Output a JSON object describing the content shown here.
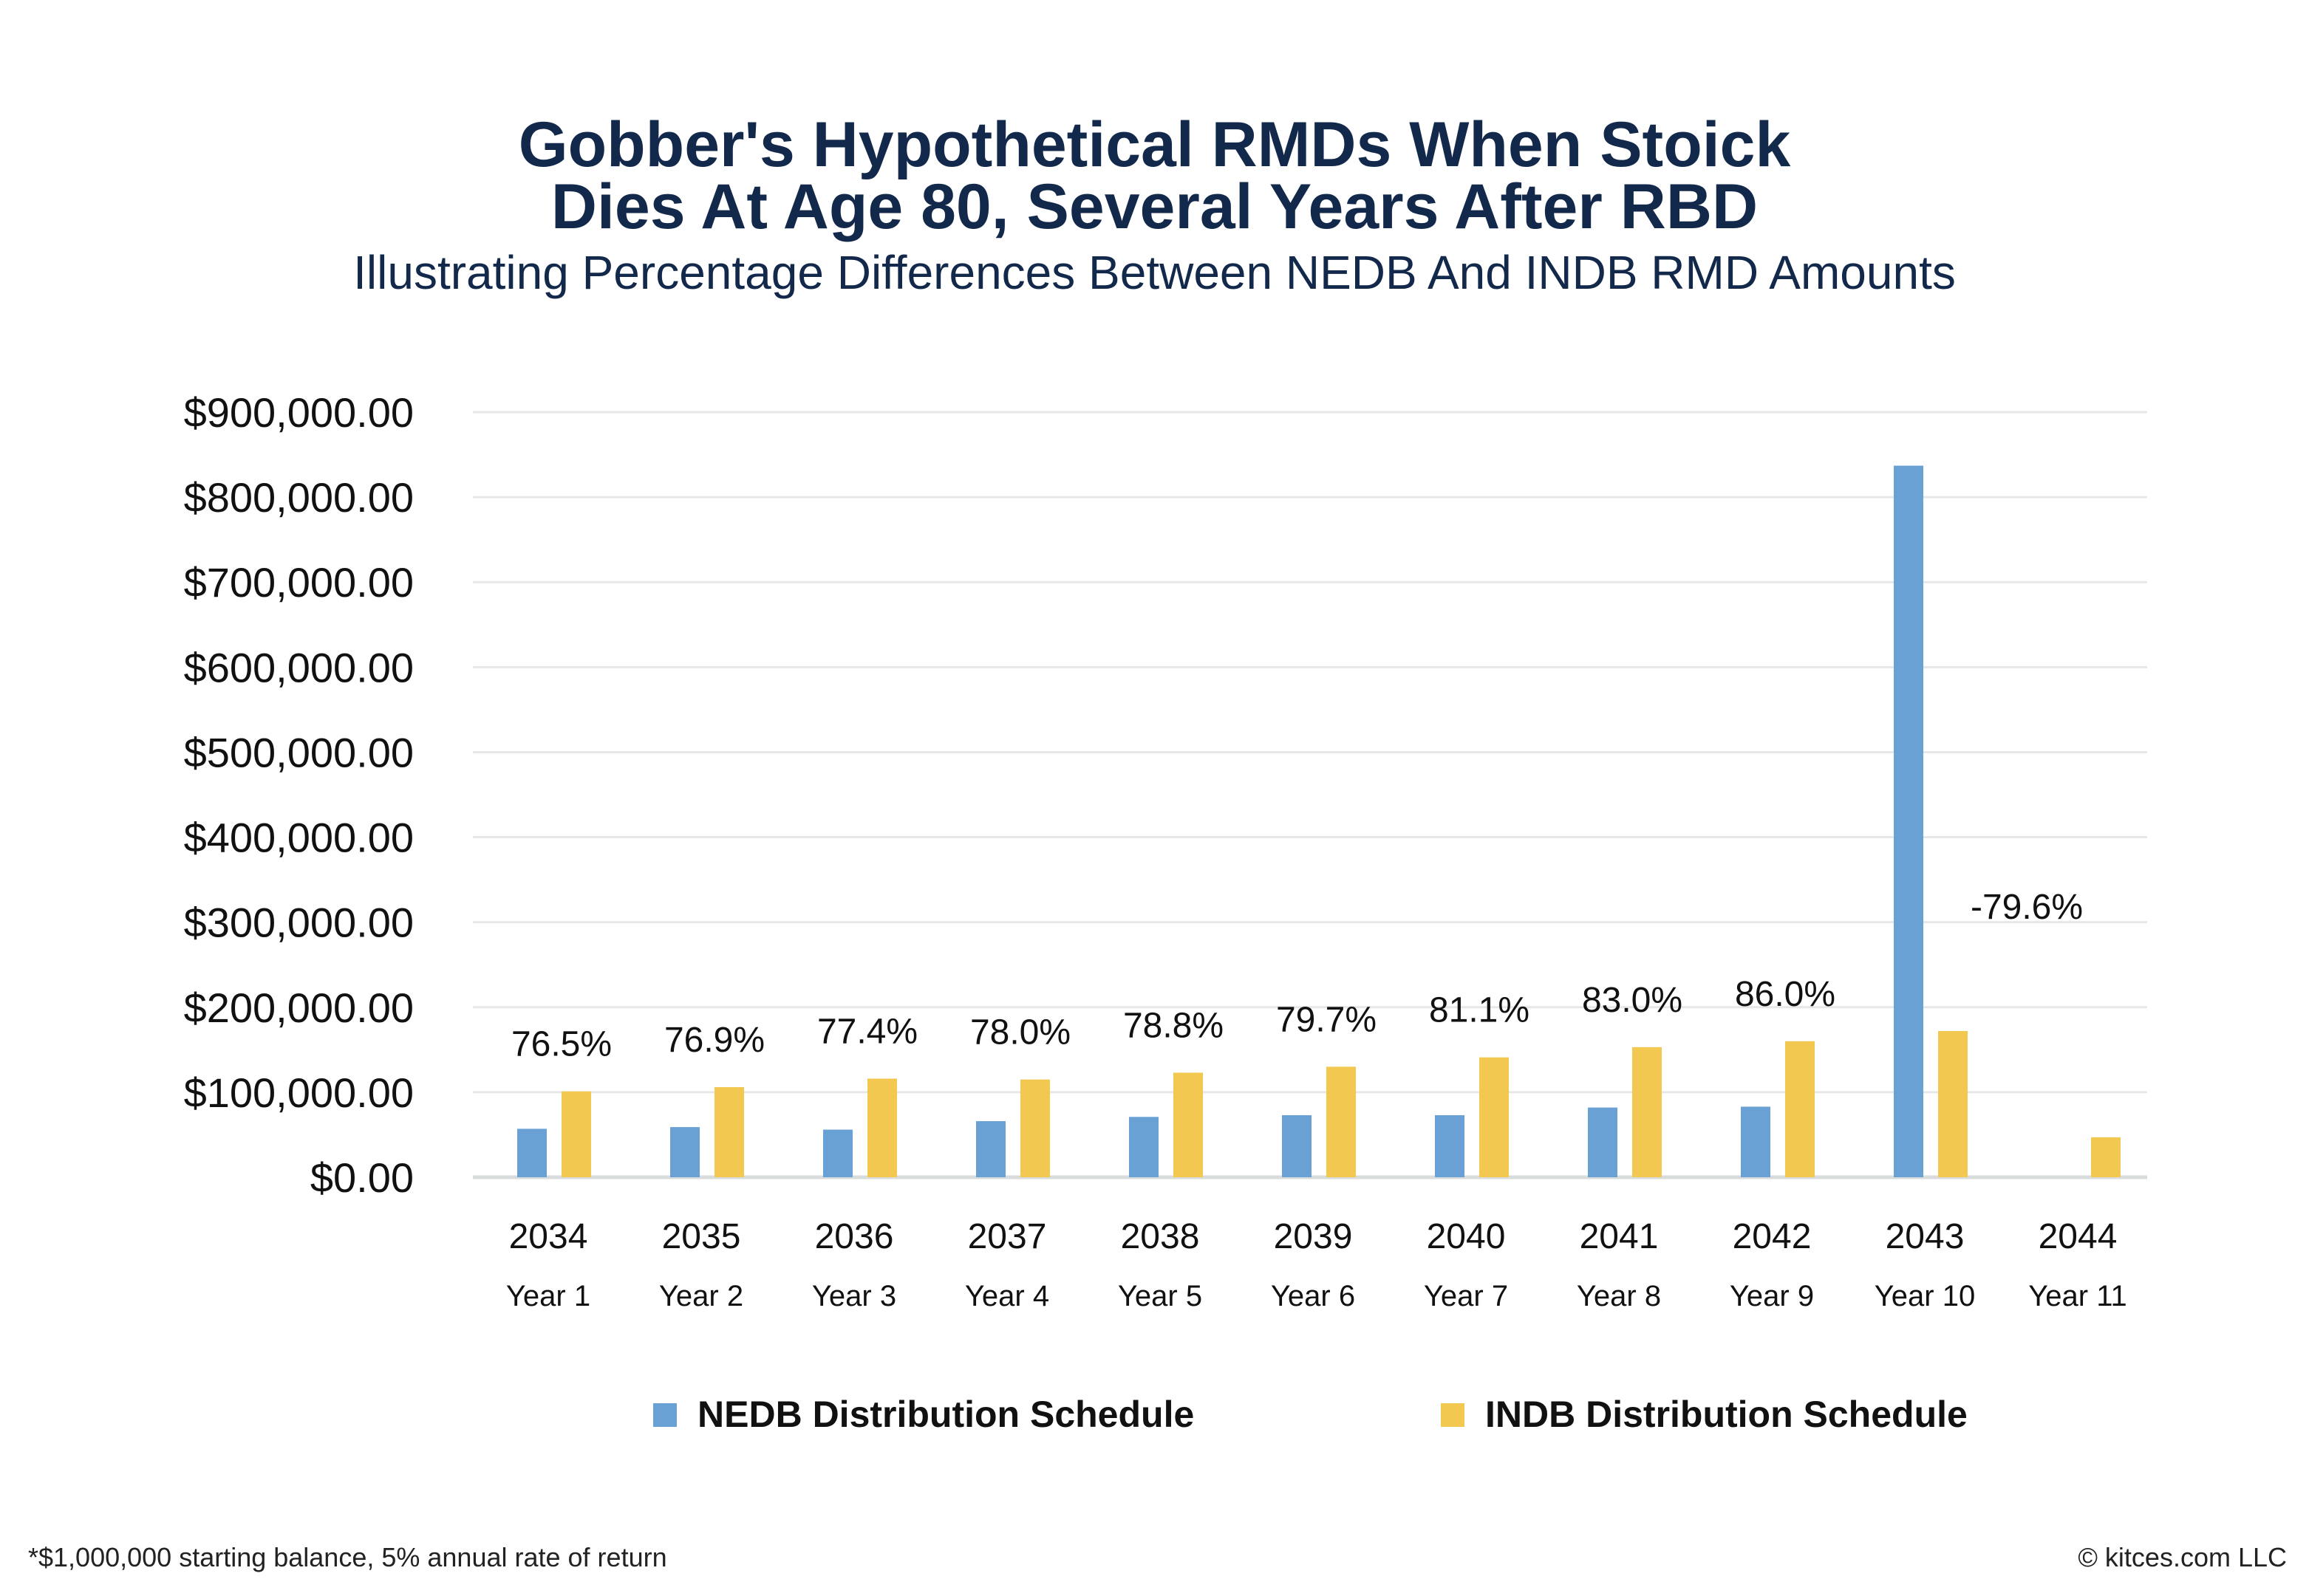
{
  "chart_data": {
    "type": "bar",
    "title": [
      "Gobber's Hypothetical RMDs When Stoick",
      "Dies At Age 80, Several Years After RBD"
    ],
    "subtitle": "Illustrating Percentage Differences Between NEDB And INDB RMD Amounts",
    "categories": [
      "2034",
      "2035",
      "2036",
      "2037",
      "2038",
      "2039",
      "2040",
      "2041",
      "2042",
      "2043",
      "2044"
    ],
    "category_sublabels": [
      "Year 1",
      "Year 2",
      "Year 3",
      "Year 4",
      "Year 5",
      "Year 6",
      "Year 7",
      "Year 8",
      "Year 9",
      "Year 10",
      "Year 11"
    ],
    "series": [
      {
        "name": "NEDB Distribution Schedule",
        "color": "#6aa1d4",
        "values": [
          57000,
          59000,
          56000,
          66000,
          71000,
          73000,
          73000,
          82000,
          83000,
          837000,
          0
        ]
      },
      {
        "name": "INDB Distribution Schedule",
        "color": "#f3c851",
        "values": [
          101000,
          106000,
          116000,
          115000,
          123000,
          130000,
          141000,
          153000,
          160000,
          172000,
          47000
        ]
      }
    ],
    "data_labels": [
      "76.5%",
      "76.9%",
      "77.4%",
      "78.0%",
      "78.8%",
      "79.7%",
      "81.1%",
      "83.0%",
      "86.0%",
      "-79.6%",
      ""
    ],
    "yticks": [
      "$0.00",
      "$100,000.00",
      "$200,000.00",
      "$300,000.00",
      "$400,000.00",
      "$500,000.00",
      "$600,000.00",
      "$700,000.00",
      "$800,000.00",
      "$900,000.00"
    ],
    "ylim": [
      0,
      900000
    ],
    "grid": true,
    "legend": "bottom",
    "xlabel": "",
    "ylabel": ""
  },
  "footnote": "*$1,000,000 starting balance, 5% annual rate of return",
  "copyright": "© kitces.com LLC"
}
